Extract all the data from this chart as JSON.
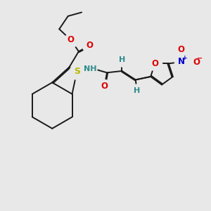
{
  "bg_color": "#e8e8e8",
  "bond_color": "#1a1a1a",
  "bond_width": 1.4,
  "dbo": 0.038,
  "atom_colors": {
    "S": "#b8b800",
    "O": "#dd0000",
    "N": "#0000cc",
    "H": "#2e8b8b",
    "C": "#1a1a1a"
  },
  "fs": 8.5
}
